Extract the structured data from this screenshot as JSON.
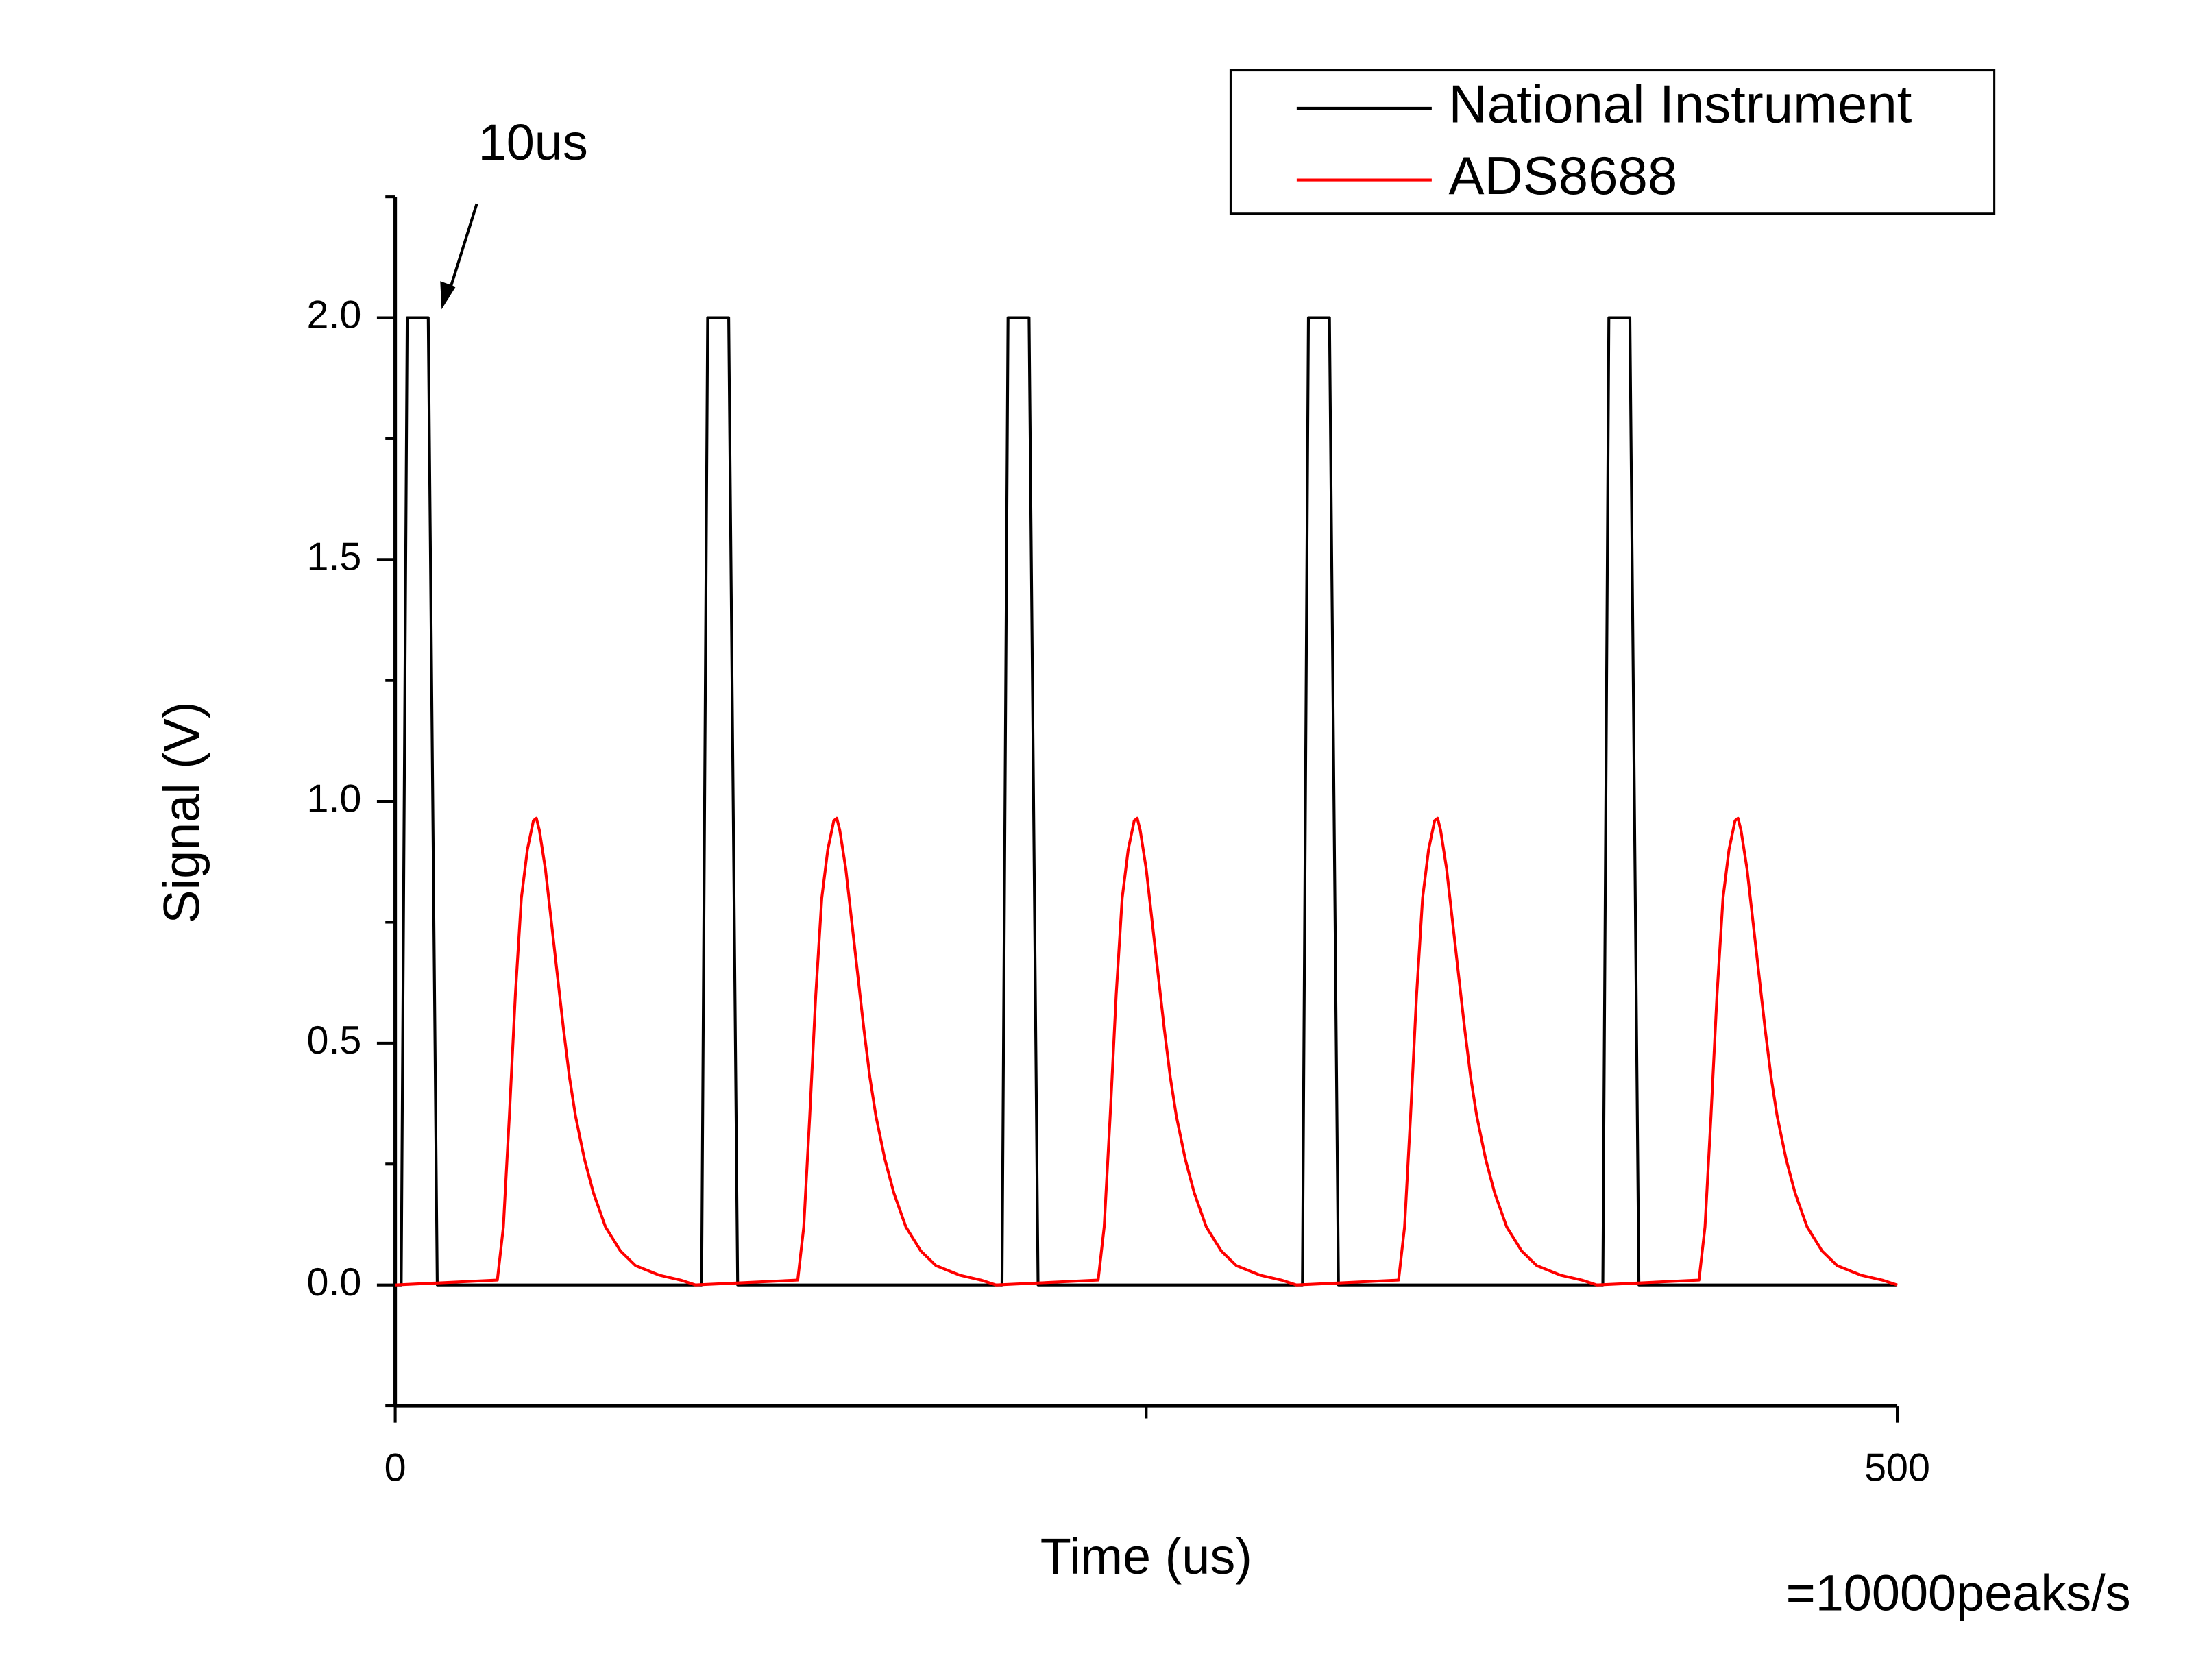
{
  "chart_data": {
    "type": "line",
    "x_label": "Time (us)",
    "y_label": "Signal (V)",
    "annotations": [
      "10us",
      "=10000peaks/s"
    ],
    "xlim": [
      0,
      500
    ],
    "xticks": [
      0,
      500
    ],
    "x_minor_ticks": [
      250
    ],
    "ylim": [
      -0.25,
      2.25
    ],
    "yticks": [
      {
        "value": 0,
        "label": "0.0"
      },
      {
        "value": 0.5,
        "label": "0.5"
      },
      {
        "value": 1,
        "label": "1.0"
      },
      {
        "value": 1.5,
        "label": "1.5"
      },
      {
        "value": 2,
        "label": "2.0"
      }
    ],
    "y_minor_ticks": [
      -0.25,
      0.25,
      0.75,
      1.25,
      1.75,
      2.25
    ],
    "grid": false,
    "legend": "upper right",
    "series": [
      {
        "name": "National Instrument",
        "color": "#000000",
        "x": [
          0,
          2,
          4,
          11,
          14,
          102,
          104,
          111,
          114,
          202,
          204,
          211,
          214,
          302,
          304,
          311,
          314,
          402,
          404,
          411,
          414,
          500
        ],
        "values": [
          0,
          0,
          2,
          2,
          0,
          0,
          2,
          2,
          0,
          0,
          2,
          2,
          0,
          0,
          2,
          2,
          0,
          0,
          2,
          2,
          0,
          0
        ]
      },
      {
        "name": "ADS8688",
        "color": "#ff0000",
        "x": [
          0,
          34,
          36,
          38,
          40,
          42,
          44,
          46,
          47,
          48,
          50,
          52,
          54,
          56,
          58,
          60,
          63,
          66,
          70,
          75,
          80,
          88,
          95,
          100,
          134,
          136,
          138,
          140,
          142,
          144,
          146,
          147,
          148,
          150,
          152,
          154,
          156,
          158,
          160,
          163,
          166,
          170,
          175,
          180,
          188,
          195,
          200,
          234,
          236,
          238,
          240,
          242,
          244,
          246,
          247,
          248,
          250,
          252,
          254,
          256,
          258,
          260,
          263,
          266,
          270,
          275,
          280,
          288,
          295,
          300,
          334,
          336,
          338,
          340,
          342,
          344,
          346,
          347,
          348,
          350,
          352,
          354,
          356,
          358,
          360,
          363,
          366,
          370,
          375,
          380,
          388,
          395,
          400,
          434,
          436,
          438,
          440,
          442,
          444,
          446,
          447,
          448,
          450,
          452,
          454,
          456,
          458,
          460,
          463,
          466,
          470,
          475,
          480,
          488,
          495,
          500
        ],
        "values": [
          0,
          0.01,
          0.12,
          0.35,
          0.6,
          0.8,
          0.9,
          0.96,
          0.965,
          0.94,
          0.86,
          0.75,
          0.64,
          0.53,
          0.43,
          0.35,
          0.26,
          0.19,
          0.12,
          0.07,
          0.04,
          0.02,
          0.01,
          0,
          0.01,
          0.12,
          0.35,
          0.6,
          0.8,
          0.9,
          0.96,
          0.965,
          0.94,
          0.86,
          0.75,
          0.64,
          0.53,
          0.43,
          0.35,
          0.26,
          0.19,
          0.12,
          0.07,
          0.04,
          0.02,
          0.01,
          0,
          0.01,
          0.12,
          0.35,
          0.6,
          0.8,
          0.9,
          0.96,
          0.965,
          0.94,
          0.86,
          0.75,
          0.64,
          0.53,
          0.43,
          0.35,
          0.26,
          0.19,
          0.12,
          0.07,
          0.04,
          0.02,
          0.01,
          0,
          0.01,
          0.12,
          0.35,
          0.6,
          0.8,
          0.9,
          0.96,
          0.965,
          0.94,
          0.86,
          0.75,
          0.64,
          0.53,
          0.43,
          0.35,
          0.26,
          0.19,
          0.12,
          0.07,
          0.04,
          0.02,
          0.01,
          0,
          0.01,
          0.12,
          0.35,
          0.6,
          0.8,
          0.9,
          0.96,
          0.965,
          0.94,
          0.86,
          0.75,
          0.64,
          0.53,
          0.43,
          0.35,
          0.26,
          0.19,
          0.12,
          0.07,
          0.04,
          0.02,
          0.01,
          0
        ]
      }
    ]
  }
}
